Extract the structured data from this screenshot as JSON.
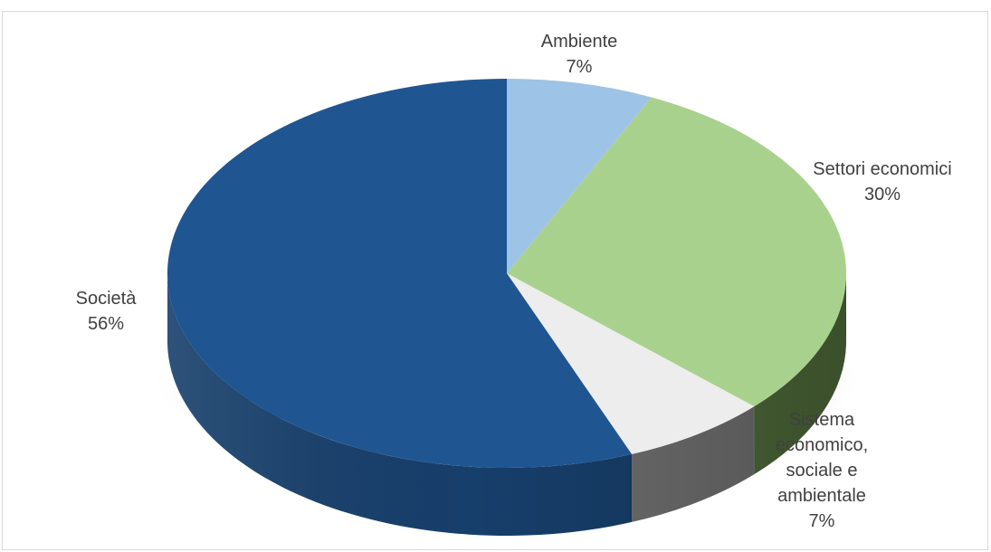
{
  "chart_data": {
    "type": "pie",
    "style": "3d",
    "title": "",
    "slices": [
      {
        "label": "Ambiente",
        "value": 7,
        "value_label": "7%",
        "color": "#9dc3e6",
        "side_color": "#7fa5c8"
      },
      {
        "label": "Settori economici",
        "value": 30,
        "value_label": "30%",
        "color": "#a9d18e",
        "side_color": "#4e6a3a"
      },
      {
        "label": "Sistema economico, sociale e ambientale",
        "label_lines": [
          "Sistema",
          "economico,",
          "sociale e",
          "ambientale"
        ],
        "value": 7,
        "value_label": "7%",
        "color": "#ededed",
        "side_color": "#6f6f6f"
      },
      {
        "label": "Società",
        "value": 56,
        "value_label": "56%",
        "color": "#1f5591",
        "side_color": "#173f6b"
      }
    ]
  }
}
